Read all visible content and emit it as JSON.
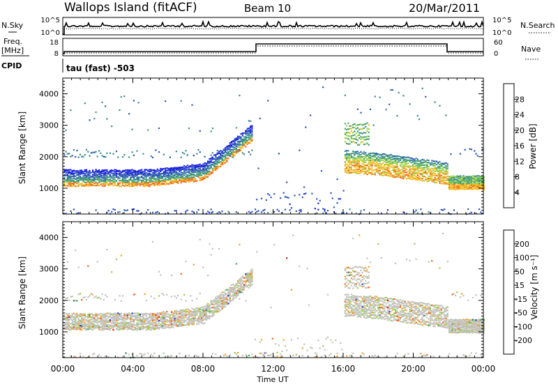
{
  "header": {
    "title": "Wallops Island (fitACF)",
    "beam": "Beam 10",
    "date": "20/Mar/2011"
  },
  "noise_panel": {
    "left_label": "N.Sky",
    "right_label": "N.Search",
    "left_ticks": [
      "10^5",
      "10^0"
    ],
    "right_ticks": [
      "10^5",
      "10^0"
    ]
  },
  "freq_panel": {
    "left_label_line1": "Freq.",
    "left_label_line2": "[MHz]",
    "right_label": "Nave",
    "left_ticks": [
      "18",
      "8"
    ],
    "right_ticks": [
      "60",
      "0"
    ]
  },
  "cpid": {
    "label": "CPID",
    "value": "tau (fast) -503"
  },
  "chart_data": [
    {
      "type": "heatmap",
      "name": "power",
      "ylabel": "Slant Range [km]",
      "yticks": [
        "1000",
        "2000",
        "3000",
        "4000"
      ],
      "ylim": [
        180,
        4500
      ],
      "xlim": [
        0,
        24
      ],
      "colorbar": {
        "label": "Power [dB]",
        "ticks": [
          "4",
          "8",
          "12",
          "16",
          "20",
          "24",
          "28"
        ],
        "colors": [
          "#1a22d8",
          "#2a52b8",
          "#3a8a8a",
          "#4aa860",
          "#9ad040",
          "#f0b818",
          "#f06c10",
          "#e01010"
        ]
      }
    },
    {
      "type": "heatmap",
      "name": "velocity",
      "ylabel": "Slant Range [km]",
      "yticks": [
        "1000",
        "2000",
        "3000",
        "4000"
      ],
      "ylim": [
        180,
        4500
      ],
      "xlim": [
        0,
        24
      ],
      "colorbar": {
        "label": "Velocity [m s⁻¹]",
        "ticks": [
          "200",
          "100",
          "50",
          "15",
          "-15",
          "-50",
          "-100",
          "-200"
        ],
        "colors": [
          "#2030c8",
          "#2a7a6a",
          "#3aa840",
          "#90d040",
          "#c0c0b8",
          "#f0a020",
          "#f06010",
          "#e01010"
        ]
      }
    }
  ],
  "x_axis": {
    "ticks": [
      "00:00",
      "04:00",
      "08:00",
      "12:00",
      "16:00",
      "20:00",
      "00:00"
    ],
    "label": "Time UT"
  }
}
